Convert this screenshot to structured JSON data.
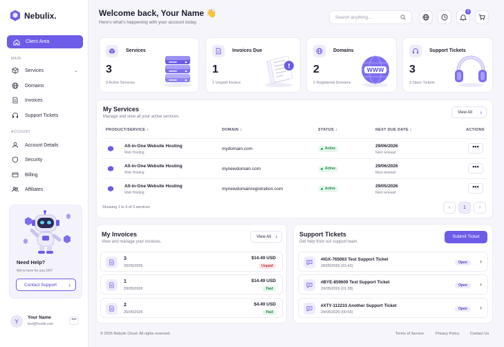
{
  "brand": {
    "name": "Nebulix."
  },
  "sidebar": {
    "active": "Client Area",
    "main_label": "MAIN",
    "main_items": [
      "Services",
      "Domains",
      "Invoices",
      "Support Tickets"
    ],
    "account_label": "ACCOUNT",
    "account_items": [
      "Account Details",
      "Security",
      "Billing",
      "Affiliates"
    ],
    "help": {
      "title": "Need Help?",
      "sub": "We're here for you 24/7",
      "button": "Contact Support"
    },
    "user": {
      "initial": "Y",
      "name": "Your Name",
      "email": "test@hostlk.com",
      "menu": "•••"
    }
  },
  "header": {
    "title": "Welcome back, Your Name",
    "wave": "👋",
    "subtitle": "Here's what's happening with your account today.",
    "search_placeholder": "Search anything...",
    "notification_count": "3"
  },
  "stats": [
    {
      "label": "Services",
      "count": "3",
      "desc": "3 Active Services",
      "icon": "cube-icon"
    },
    {
      "label": "Invoices Due",
      "count": "1",
      "desc": "1 Unpaid Invoice",
      "icon": "document-icon"
    },
    {
      "label": "Domains",
      "count": "2",
      "desc": "2 Registered Domains",
      "icon": "globe-icon"
    },
    {
      "label": "Support Tickets",
      "count": "3",
      "desc": "3 Open Tickets",
      "icon": "headset-icon"
    }
  ],
  "illustration_text": {
    "www": "WWW"
  },
  "services": {
    "title": "My Services",
    "subtitle": "Manage and view all your active services.",
    "view_all": "View All",
    "columns": [
      "PRODUCT/SERVICE",
      "DOMAIN",
      "STATUS",
      "NEXT DUE DATE",
      "ACTIONS"
    ],
    "rows": [
      {
        "name": "All-in-One Website Hosting",
        "type": "Web Hosting",
        "domain": "mydomain.com",
        "status": "Active",
        "date": "29/06/2026",
        "date_label": "Next renewal",
        "more": "•••"
      },
      {
        "name": "All-in-One Website Hosting",
        "type": "Web Hosting",
        "domain": "mynewdomain.com",
        "status": "Active",
        "date": "29/06/2026",
        "date_label": "Next renewal",
        "more": "•••"
      },
      {
        "name": "All-in-One Website Hosting",
        "type": "Web Hosting",
        "domain": "mynewdomainregistration.com",
        "status": "Active",
        "date": "29/05/2026",
        "date_label": "Next renewal",
        "more": "•••"
      }
    ],
    "showing": "Showing 1 to 3 of 3 services",
    "page": "1"
  },
  "invoices": {
    "title": "My Invoices",
    "subtitle": "View and manage your invoices.",
    "view_all": "View All",
    "rows": [
      {
        "number": "3",
        "date": "29/05/2026",
        "amount": "$14.49 USD",
        "status": "Unpaid"
      },
      {
        "number": "1",
        "date": "29/05/2026",
        "amount": "$14.49 USD",
        "status": "Paid"
      },
      {
        "number": "2",
        "date": "29/05/2026",
        "amount": "$4.49 USD",
        "status": "Paid"
      }
    ]
  },
  "tickets": {
    "title": "Support Tickets",
    "subtitle": "Get help from our support team.",
    "submit": "Submit Ticket",
    "rows": [
      {
        "title": "#IGX-765063 Test Support Ticket",
        "date": "29/05/2026 (01:42)",
        "status": "Open"
      },
      {
        "title": "#BYE-859609 Test Support Ticket",
        "date": "29/05/2026 (01:38)",
        "status": "Open"
      },
      {
        "title": "#XTY-112233 Another Support Ticket",
        "date": "29/05/2026 (00:55)",
        "status": "Open"
      }
    ]
  },
  "footer": {
    "copyright": "© 2026 Nebulix Cloud. All rights reserved.",
    "links": [
      "Terms of Service",
      "Privacy Policy",
      "Contact Us"
    ]
  },
  "colors": {
    "accent": "#6c5ce7",
    "active_green": "#1f8a49",
    "unpaid_red": "#c2343d"
  }
}
